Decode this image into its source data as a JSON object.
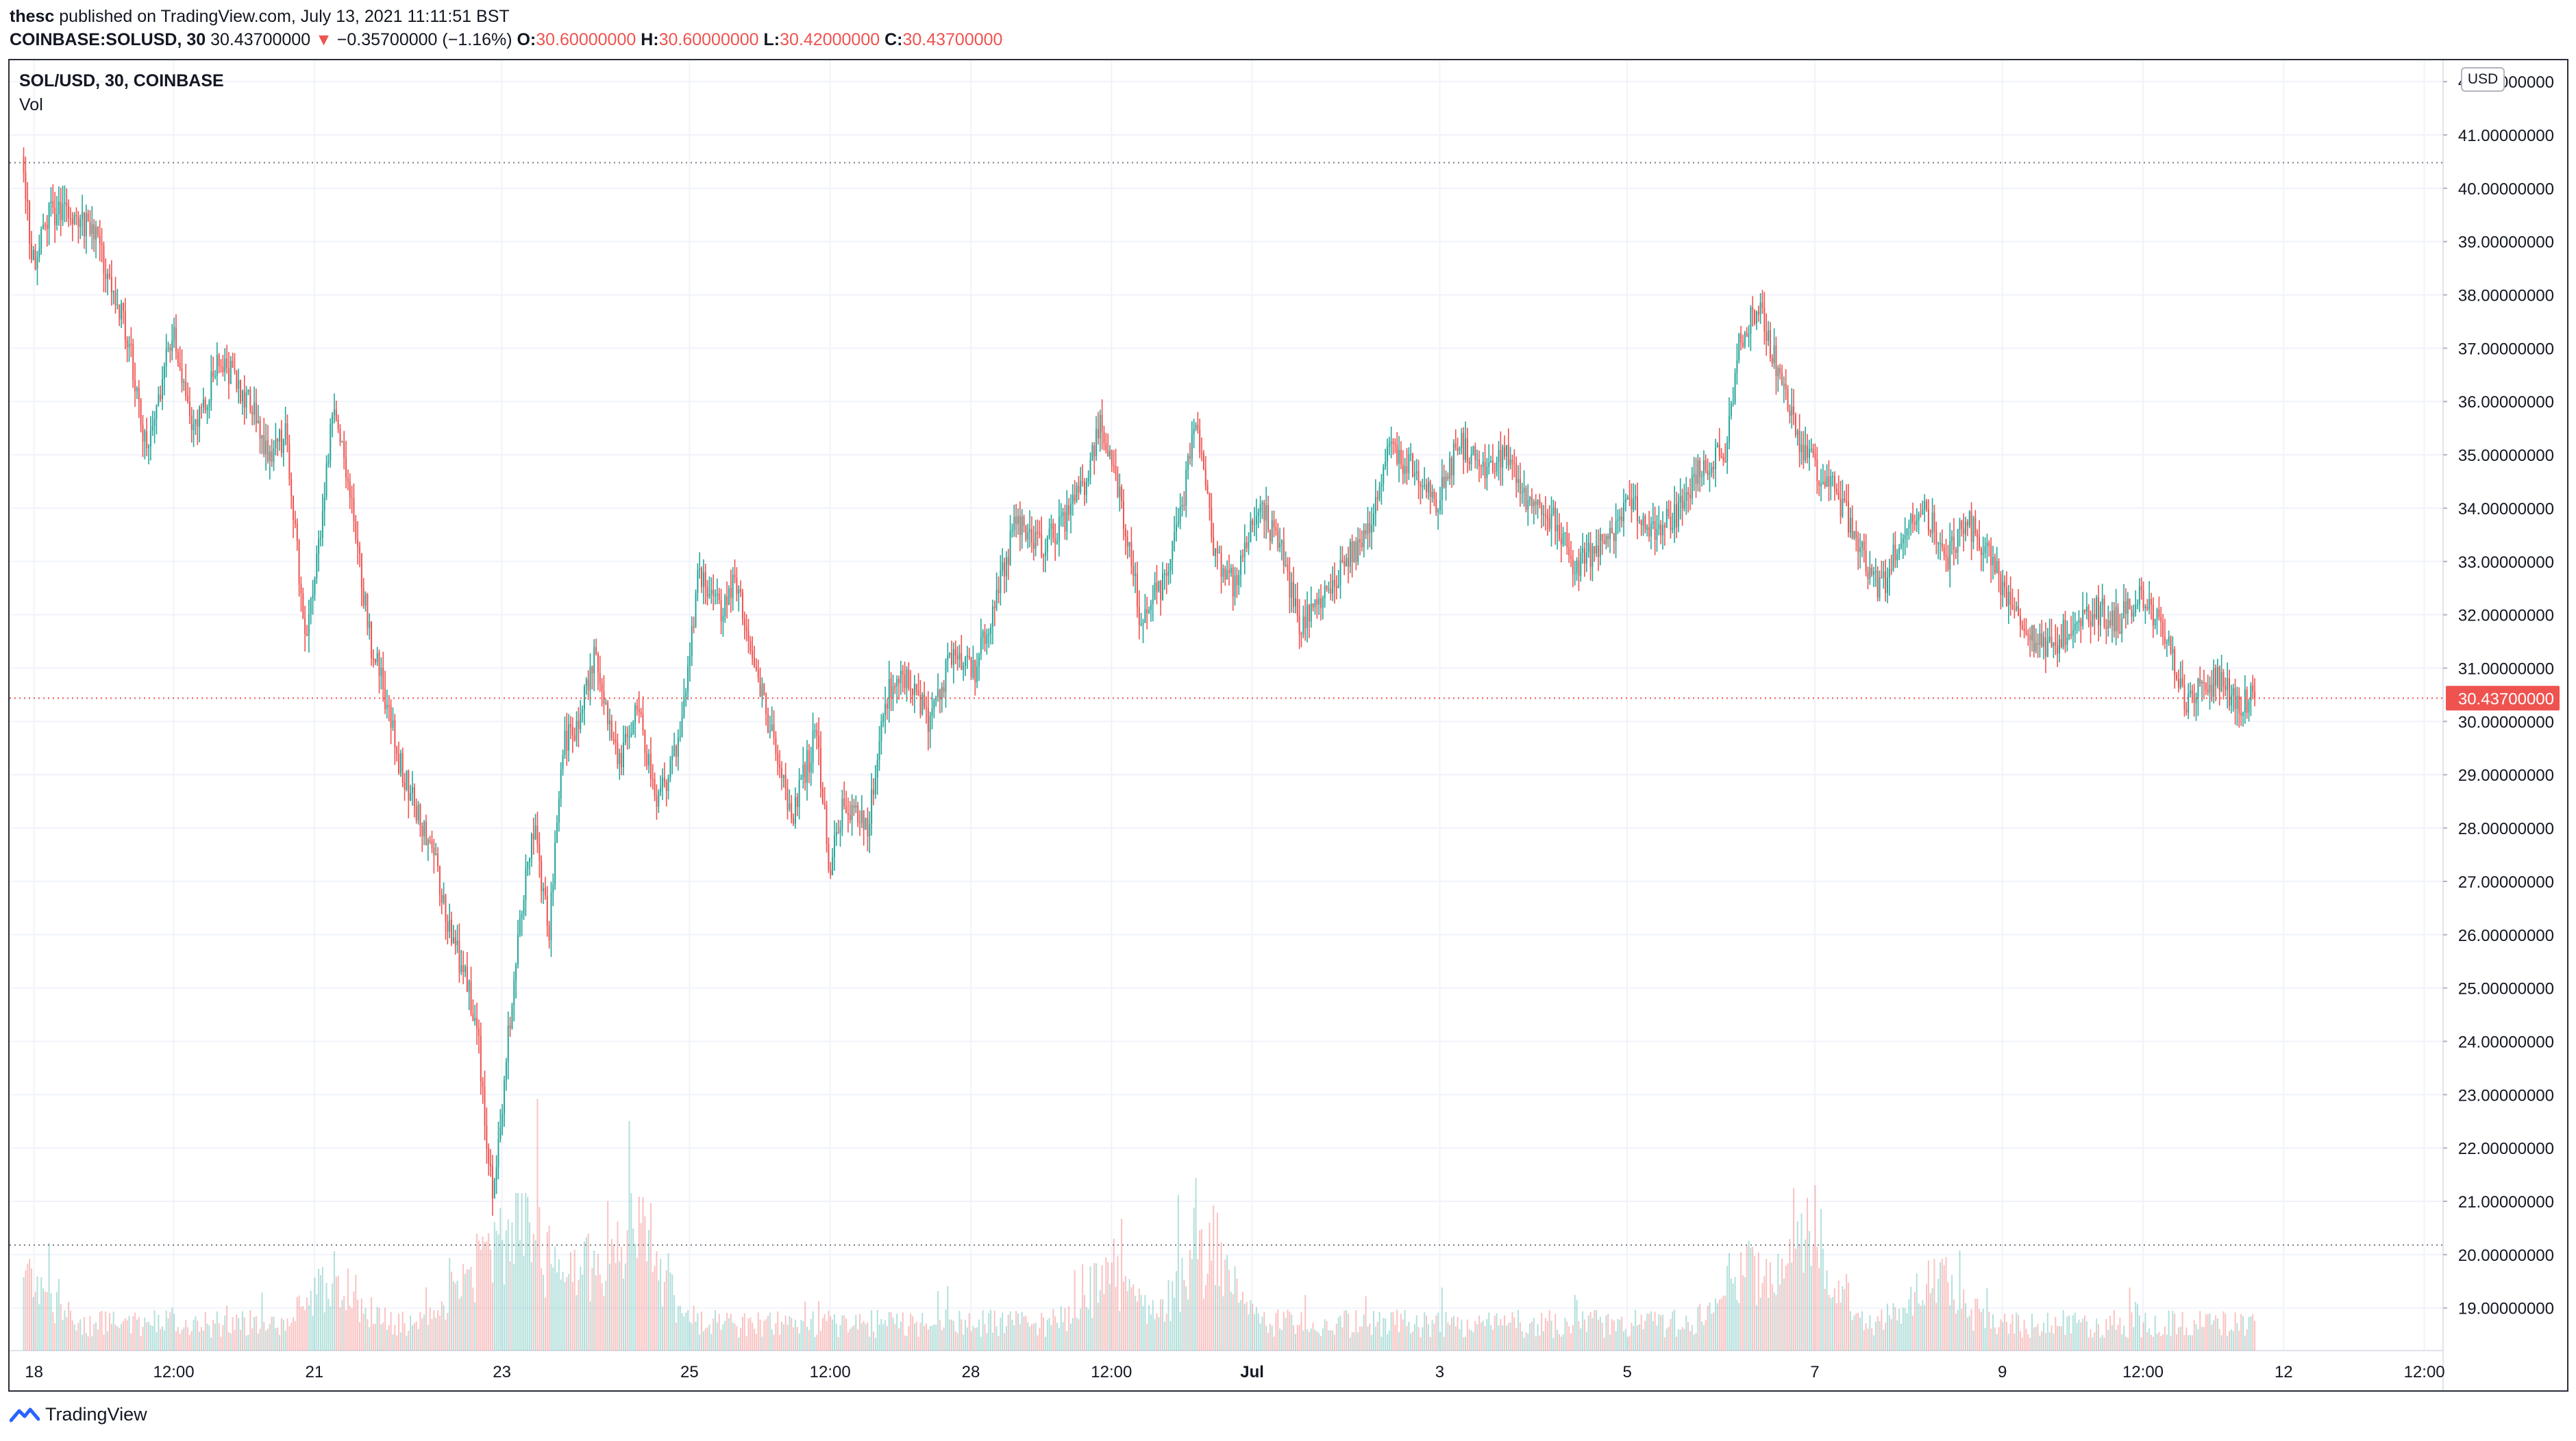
{
  "header": {
    "publisher": "thesc",
    "published_text": "published on TradingView.com, July 13, 2021 11:11:51 BST",
    "symbol": "COINBASE:SOLUSD, 30",
    "last": "30.43700000",
    "change_arrow": "▼",
    "change": "−0.35700000 (−1.16%)",
    "o_label": "O:",
    "o_value": "30.60000000",
    "h_label": "H:",
    "h_value": "30.60000000",
    "l_label": "L:",
    "l_value": "30.42000000",
    "c_label": "C:",
    "c_value": "30.43700000"
  },
  "legend": {
    "title": "SOL/USD, 30, COINBASE",
    "volume": "Vol"
  },
  "currency_badge": "USD",
  "footer": {
    "brand": "TradingView",
    "icon": "tradingview-logo-icon"
  },
  "colors": {
    "up": "#26a69a",
    "down": "#ef5350",
    "grid": "#f0f3fa",
    "axis_text": "#131722",
    "last_price_bg": "#ef5350"
  },
  "chart_data": {
    "type": "candlestick",
    "symbol": "SOL/USD",
    "interval": "30",
    "exchange": "COINBASE",
    "y_axis": {
      "ticks": [
        "42.00000000",
        "41.00000000",
        "40.00000000",
        "39.00000000",
        "38.00000000",
        "37.00000000",
        "36.00000000",
        "35.00000000",
        "34.00000000",
        "33.00000000",
        "32.00000000",
        "31.00000000",
        "30.00000000",
        "29.00000000",
        "28.00000000",
        "27.00000000",
        "26.00000000",
        "25.00000000",
        "24.00000000",
        "23.00000000",
        "22.00000000",
        "21.00000000",
        "20.00000000",
        "19.00000000"
      ],
      "range": [
        18.2,
        42.4
      ]
    },
    "x_axis": {
      "ticks": [
        "18",
        "12:00",
        "21",
        "23",
        "25",
        "12:00",
        "28",
        "12:00",
        "Jul",
        "3",
        "5",
        "7",
        "9",
        "12:00",
        "12",
        "12:00"
      ],
      "tick_days": [
        0.11,
        1.6,
        3.1,
        5.1,
        7.1,
        8.6,
        10.1,
        11.6,
        13.1,
        15.1,
        17.1,
        19.1,
        21.1,
        22.6,
        24.1,
        25.6
      ],
      "range_days": [
        -0.15,
        25.8
      ]
    },
    "last_price": "30.43700000",
    "last_price_value": 30.437,
    "high_line": 40.48,
    "low_line": 20.18,
    "key_points": [
      {
        "day": 0.0,
        "price": 40.3
      },
      {
        "day": 0.1,
        "price": 38.6
      },
      {
        "day": 0.3,
        "price": 39.6
      },
      {
        "day": 0.75,
        "price": 39.2
      },
      {
        "day": 1.1,
        "price": 37.3
      },
      {
        "day": 1.3,
        "price": 35.2
      },
      {
        "day": 1.6,
        "price": 37.3
      },
      {
        "day": 1.8,
        "price": 35.4
      },
      {
        "day": 2.1,
        "price": 36.8
      },
      {
        "day": 2.4,
        "price": 36.0
      },
      {
        "day": 2.6,
        "price": 35.0
      },
      {
        "day": 2.8,
        "price": 35.4
      },
      {
        "day": 3.0,
        "price": 31.6
      },
      {
        "day": 3.15,
        "price": 33.3
      },
      {
        "day": 3.3,
        "price": 35.8
      },
      {
        "day": 3.45,
        "price": 34.6
      },
      {
        "day": 3.7,
        "price": 31.5
      },
      {
        "day": 3.85,
        "price": 30.5
      },
      {
        "day": 4.0,
        "price": 29.3
      },
      {
        "day": 4.2,
        "price": 28.3
      },
      {
        "day": 4.4,
        "price": 27.3
      },
      {
        "day": 4.55,
        "price": 26.0
      },
      {
        "day": 4.7,
        "price": 25.3
      },
      {
        "day": 4.85,
        "price": 24.0
      },
      {
        "day": 5.0,
        "price": 21.0
      },
      {
        "day": 5.1,
        "price": 22.8
      },
      {
        "day": 5.3,
        "price": 26.5
      },
      {
        "day": 5.45,
        "price": 28.0
      },
      {
        "day": 5.6,
        "price": 26.0
      },
      {
        "day": 5.75,
        "price": 29.5
      },
      {
        "day": 5.9,
        "price": 30.0
      },
      {
        "day": 6.1,
        "price": 31.3
      },
      {
        "day": 6.35,
        "price": 29.2
      },
      {
        "day": 6.55,
        "price": 30.3
      },
      {
        "day": 6.75,
        "price": 28.5
      },
      {
        "day": 7.0,
        "price": 29.6
      },
      {
        "day": 7.2,
        "price": 32.8
      },
      {
        "day": 7.45,
        "price": 32.0
      },
      {
        "day": 7.6,
        "price": 32.7
      },
      {
        "day": 7.8,
        "price": 31.2
      },
      {
        "day": 8.0,
        "price": 29.5
      },
      {
        "day": 8.2,
        "price": 28.2
      },
      {
        "day": 8.45,
        "price": 29.8
      },
      {
        "day": 8.6,
        "price": 27.2
      },
      {
        "day": 8.75,
        "price": 28.5
      },
      {
        "day": 9.0,
        "price": 28.0
      },
      {
        "day": 9.2,
        "price": 30.5
      },
      {
        "day": 9.45,
        "price": 30.8
      },
      {
        "day": 9.65,
        "price": 30.0
      },
      {
        "day": 9.9,
        "price": 31.2
      },
      {
        "day": 10.15,
        "price": 31.0
      },
      {
        "day": 10.4,
        "price": 32.6
      },
      {
        "day": 10.6,
        "price": 33.8
      },
      {
        "day": 10.85,
        "price": 33.2
      },
      {
        "day": 11.1,
        "price": 33.8
      },
      {
        "day": 11.3,
        "price": 34.4
      },
      {
        "day": 11.5,
        "price": 35.6
      },
      {
        "day": 11.7,
        "price": 34.2
      },
      {
        "day": 11.9,
        "price": 32.0
      },
      {
        "day": 12.15,
        "price": 32.6
      },
      {
        "day": 12.35,
        "price": 34.0
      },
      {
        "day": 12.5,
        "price": 35.8
      },
      {
        "day": 12.7,
        "price": 33.2
      },
      {
        "day": 12.9,
        "price": 32.6
      },
      {
        "day": 13.15,
        "price": 34.1
      },
      {
        "day": 13.4,
        "price": 33.3
      },
      {
        "day": 13.6,
        "price": 31.8
      },
      {
        "day": 13.85,
        "price": 32.4
      },
      {
        "day": 14.1,
        "price": 33.0
      },
      {
        "day": 14.35,
        "price": 33.6
      },
      {
        "day": 14.55,
        "price": 35.1
      },
      {
        "day": 14.8,
        "price": 34.8
      },
      {
        "day": 15.05,
        "price": 34.0
      },
      {
        "day": 15.3,
        "price": 35.2
      },
      {
        "day": 15.6,
        "price": 34.8
      },
      {
        "day": 15.85,
        "price": 35.0
      },
      {
        "day": 16.05,
        "price": 34.0
      },
      {
        "day": 16.3,
        "price": 33.8
      },
      {
        "day": 16.55,
        "price": 32.9
      },
      {
        "day": 16.85,
        "price": 33.3
      },
      {
        "day": 17.15,
        "price": 34.2
      },
      {
        "day": 17.35,
        "price": 33.6
      },
      {
        "day": 17.6,
        "price": 33.8
      },
      {
        "day": 17.9,
        "price": 34.8
      },
      {
        "day": 18.15,
        "price": 35.0
      },
      {
        "day": 18.3,
        "price": 37.2
      },
      {
        "day": 18.5,
        "price": 37.8
      },
      {
        "day": 18.7,
        "price": 36.6
      },
      {
        "day": 18.95,
        "price": 35.2
      },
      {
        "day": 19.1,
        "price": 34.8
      },
      {
        "day": 19.35,
        "price": 34.2
      },
      {
        "day": 19.55,
        "price": 33.4
      },
      {
        "day": 19.8,
        "price": 32.4
      },
      {
        "day": 20.0,
        "price": 33.4
      },
      {
        "day": 20.25,
        "price": 34.1
      },
      {
        "day": 20.5,
        "price": 33.0
      },
      {
        "day": 20.7,
        "price": 33.8
      },
      {
        "day": 20.9,
        "price": 33.3
      },
      {
        "day": 21.15,
        "price": 32.4
      },
      {
        "day": 21.35,
        "price": 31.8
      },
      {
        "day": 21.55,
        "price": 31.3
      },
      {
        "day": 21.85,
        "price": 31.8
      },
      {
        "day": 22.1,
        "price": 32.1
      },
      {
        "day": 22.35,
        "price": 31.9
      },
      {
        "day": 22.6,
        "price": 32.4
      },
      {
        "day": 22.85,
        "price": 31.5
      },
      {
        "day": 23.05,
        "price": 30.4
      },
      {
        "day": 23.2,
        "price": 30.6
      },
      {
        "day": 23.4,
        "price": 30.8
      },
      {
        "day": 23.6,
        "price": 30.3
      },
      {
        "day": 23.8,
        "price": 30.44
      }
    ],
    "volume_spikes": [
      {
        "day": 0.0,
        "level": 0.45
      },
      {
        "day": 3.3,
        "level": 0.4
      },
      {
        "day": 4.85,
        "level": 0.6
      },
      {
        "day": 5.05,
        "level": 0.85
      },
      {
        "day": 5.3,
        "level": 1.0
      },
      {
        "day": 5.55,
        "level": 0.65
      },
      {
        "day": 6.05,
        "level": 0.55
      },
      {
        "day": 6.55,
        "level": 1.0
      },
      {
        "day": 11.6,
        "level": 0.5
      },
      {
        "day": 12.6,
        "level": 0.75
      },
      {
        "day": 18.4,
        "level": 0.55
      },
      {
        "day": 19.05,
        "level": 0.85
      },
      {
        "day": 20.4,
        "level": 0.45
      }
    ]
  }
}
